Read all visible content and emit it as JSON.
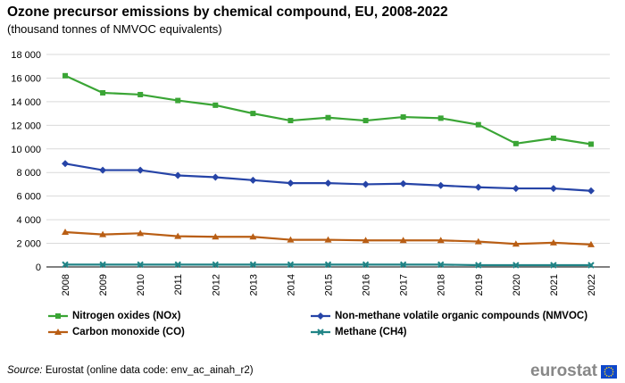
{
  "header": {
    "title": "Ozone precursor emissions by chemical compound, EU, 2008-2022",
    "subtitle": "(thousand tonnes of NMVOC  equivalents)"
  },
  "chart_data": {
    "type": "line",
    "title": "Ozone precursor emissions by chemical compound, EU, 2008-2022",
    "subtitle": "(thousand tonnes of NMVOC  equivalents)",
    "xlabel": "",
    "ylabel": "",
    "ylim": [
      0,
      18000
    ],
    "yticks": [
      0,
      2000,
      4000,
      6000,
      8000,
      10000,
      12000,
      14000,
      16000,
      18000
    ],
    "ytick_labels": [
      "0",
      "2 000",
      "4 000",
      "6 000",
      "8 000",
      "10 000",
      "12 000",
      "14 000",
      "16 000",
      "18 000"
    ],
    "grid": true,
    "categories": [
      "2008",
      "2009",
      "2010",
      "2011",
      "2012",
      "2013",
      "2014",
      "2015",
      "2016",
      "2017",
      "2018",
      "2019",
      "2020",
      "2021",
      "2022"
    ],
    "series": [
      {
        "name": "Nitrogen oxides (NOx)",
        "color": "#3aa535",
        "marker": "square",
        "values": [
          16200,
          14750,
          14600,
          14100,
          13700,
          13000,
          12400,
          12650,
          12400,
          12700,
          12600,
          12050,
          10450,
          10900,
          10400
        ]
      },
      {
        "name": "Non-methane volatile organic compounds (NMVOC)",
        "color": "#2644a7",
        "marker": "diamond",
        "values": [
          8750,
          8200,
          8200,
          7750,
          7600,
          7350,
          7100,
          7100,
          7000,
          7050,
          6900,
          6750,
          6650,
          6650,
          6450
        ]
      },
      {
        "name": "Carbon monoxide (CO)",
        "color": "#b95e14",
        "marker": "triangle",
        "values": [
          2950,
          2750,
          2850,
          2600,
          2550,
          2550,
          2300,
          2300,
          2250,
          2250,
          2250,
          2150,
          1950,
          2050,
          1900
        ]
      },
      {
        "name": "Methane (CH4)",
        "color": "#208486",
        "marker": "x",
        "values": [
          200,
          200,
          200,
          200,
          200,
          200,
          200,
          200,
          200,
          200,
          200,
          150,
          150,
          150,
          150
        ]
      }
    ],
    "legend": "bottom"
  },
  "footer": {
    "source_label": "Source:",
    "source_text": " Eurostat (online data code: env_ac_ainah_r2)",
    "brand": "eurostat"
  }
}
